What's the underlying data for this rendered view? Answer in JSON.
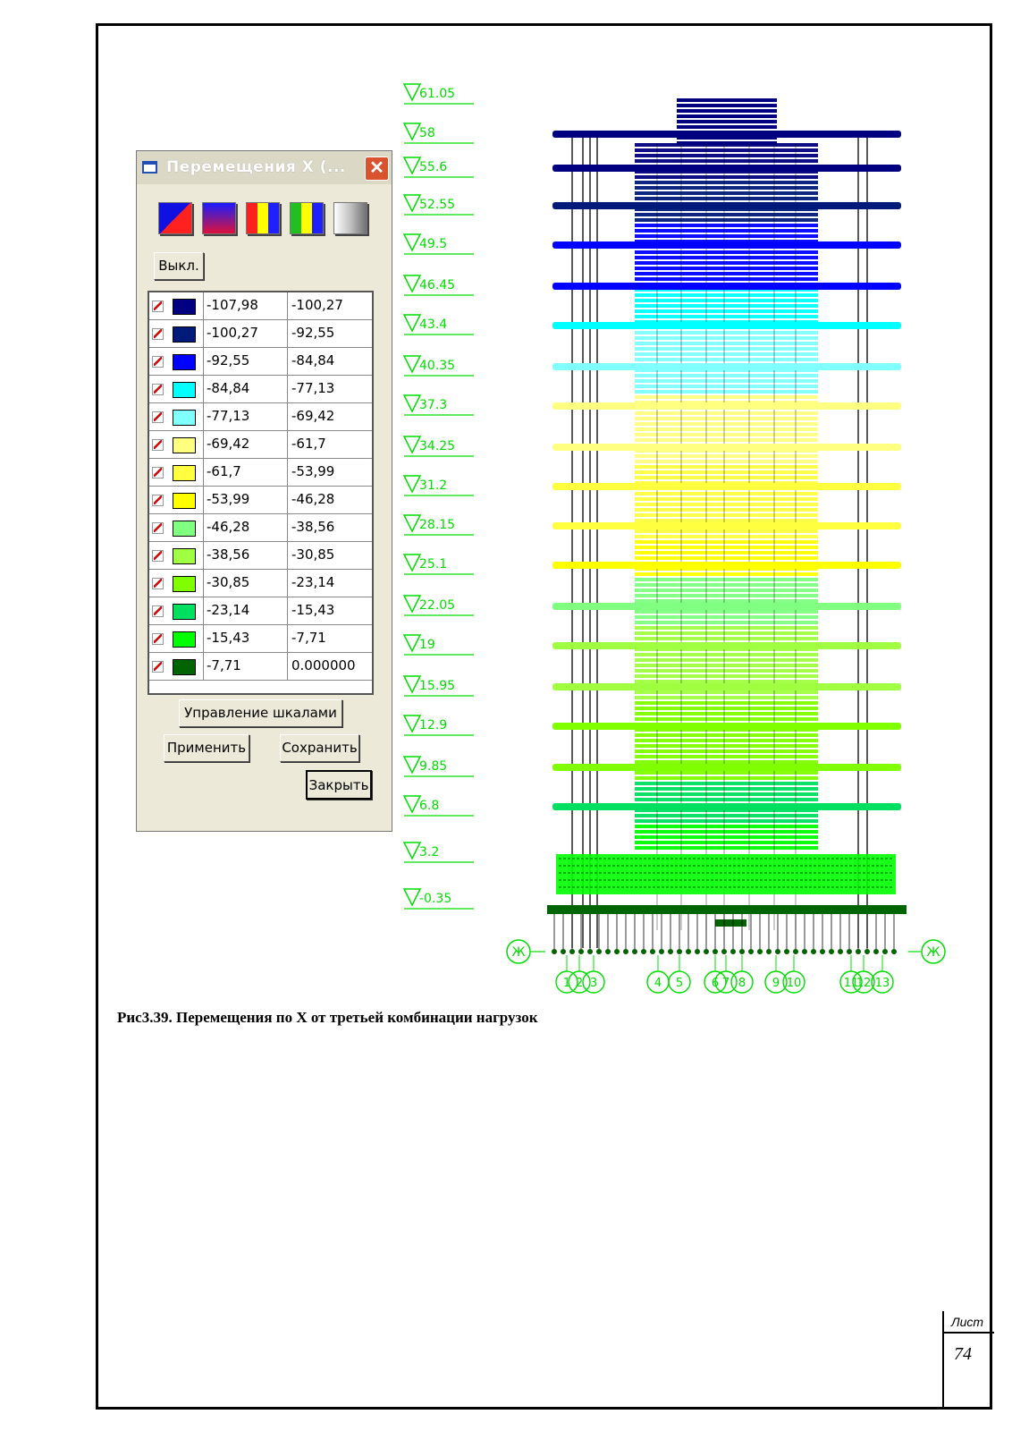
{
  "dialog": {
    "title": "Перемещения X (...",
    "off_button": "Выкл.",
    "scale_button": "Управление шкалами",
    "apply_button": "Применить",
    "save_button": "Сохранить",
    "close_button": "Закрыть",
    "palettes": [
      "red-blue-diagonal",
      "blue-gradient",
      "red-yellow-blue",
      "green-yellow-blue",
      "gray-gradient"
    ],
    "legend": [
      {
        "from": "-107,98",
        "to": "-100,27",
        "color": "#000080",
        "checked": true
      },
      {
        "from": "-100,27",
        "to": "-92,55",
        "color": "#001a7a",
        "checked": true
      },
      {
        "from": "-92,55",
        "to": "-84,84",
        "color": "#0000ff",
        "checked": true
      },
      {
        "from": "-84,84",
        "to": "-77,13",
        "color": "#00ffff",
        "checked": true
      },
      {
        "from": "-77,13",
        "to": "-69,42",
        "color": "#80ffff",
        "checked": true
      },
      {
        "from": "-69,42",
        "to": "-61,7",
        "color": "#ffff80",
        "checked": true
      },
      {
        "from": "-61,7",
        "to": "-53,99",
        "color": "#ffff40",
        "checked": true
      },
      {
        "from": "-53,99",
        "to": "-46,28",
        "color": "#ffff00",
        "checked": true
      },
      {
        "from": "-46,28",
        "to": "-38,56",
        "color": "#80ff80",
        "checked": true
      },
      {
        "from": "-38,56",
        "to": "-30,85",
        "color": "#a0ff40",
        "checked": true
      },
      {
        "from": "-30,85",
        "to": "-23,14",
        "color": "#80ff00",
        "checked": true
      },
      {
        "from": "-23,14",
        "to": "-15,43",
        "color": "#00e060",
        "checked": true
      },
      {
        "from": "-15,43",
        "to": "-7,71",
        "color": "#00ff00",
        "checked": true
      },
      {
        "from": "-7,71",
        "to": "0.000000",
        "color": "#006400",
        "checked": true
      }
    ]
  },
  "levels": [
    "61.05",
    "58",
    "55.6",
    "52.55",
    "49.5",
    "46.45",
    "43.4",
    "40.35",
    "37.3",
    "34.25",
    "31.2",
    "28.15",
    "25.1",
    "22.05",
    "19",
    "15.95",
    "12.9",
    "9.85",
    "6.8",
    "3.2",
    "-0.35"
  ],
  "axis_row_label": "Ж",
  "axis_columns": [
    "1",
    "2",
    "3",
    "4",
    "5",
    "6",
    "7",
    "8",
    "9",
    "10",
    "11",
    "12",
    "13"
  ],
  "caption": "Рис3.39. Перемещения по Х от третьей комбинации нагрузок",
  "sheet": {
    "label": "Лист",
    "number": "74"
  }
}
